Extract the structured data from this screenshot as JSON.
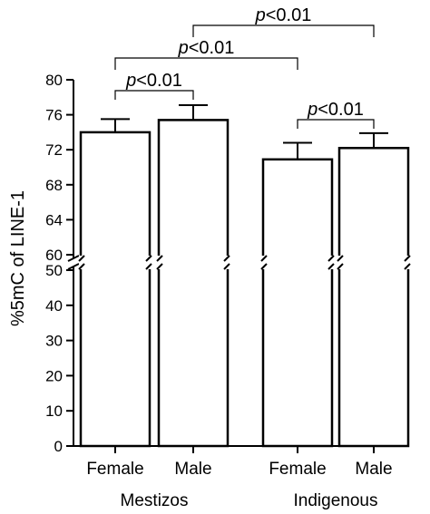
{
  "chart_data": {
    "type": "bar",
    "ylabel": "%5mC of LINE-1",
    "y_axis": {
      "broken": true,
      "lower_range": [
        0,
        50
      ],
      "upper_range": [
        60,
        80
      ],
      "lower_ticks": [
        "0",
        "10",
        "20",
        "30",
        "40",
        "50"
      ],
      "upper_ticks": [
        "60",
        "64",
        "68",
        "72",
        "76",
        "80"
      ]
    },
    "groups": [
      {
        "label": "Mestizos",
        "categories": [
          "Female",
          "Male"
        ]
      },
      {
        "label": "Indigenous",
        "categories": [
          "Female",
          "Male"
        ]
      }
    ],
    "bars": [
      {
        "group": "Mestizos",
        "category": "Female",
        "value": 74.0,
        "error": 1.5
      },
      {
        "group": "Mestizos",
        "category": "Male",
        "value": 75.4,
        "error": 1.7
      },
      {
        "group": "Indigenous",
        "category": "Female",
        "value": 70.9,
        "error": 1.9
      },
      {
        "group": "Indigenous",
        "category": "Male",
        "value": 72.2,
        "error": 1.7
      }
    ],
    "annotations": [
      {
        "text_prefix": "p",
        "text_suffix": "<0.01",
        "between": [
          0,
          1
        ]
      },
      {
        "text_prefix": "p",
        "text_suffix": "<0.01",
        "between": [
          2,
          3
        ]
      },
      {
        "text_prefix": "p",
        "text_suffix": "<0.01",
        "between": [
          0,
          2
        ]
      },
      {
        "text_prefix": "p",
        "text_suffix": "<0.01",
        "between": [
          1,
          3
        ]
      }
    ]
  }
}
